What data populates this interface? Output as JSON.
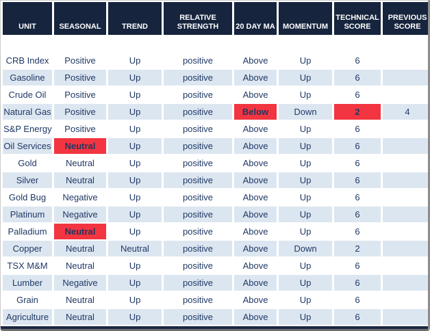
{
  "colors": {
    "header_bg": "#16243d",
    "header_text": "#ffffff",
    "row_alt_bg": "#dce6f1",
    "alert_bg": "#f23540",
    "cell_text": "#1f3864"
  },
  "table": {
    "columns": [
      {
        "key": "unit",
        "label": "UNIT"
      },
      {
        "key": "seasonal",
        "label": "SEASONAL"
      },
      {
        "key": "trend",
        "label": "TREND"
      },
      {
        "key": "relative_strength",
        "label": "RELATIVE STRENGTH"
      },
      {
        "key": "ma20",
        "label": "20 DAY MA"
      },
      {
        "key": "momentum",
        "label": "MOMENTUM"
      },
      {
        "key": "technical_score",
        "label": "TECHNICAL SCORE"
      },
      {
        "key": "previous_score",
        "label": "PREVIOUS SCORE"
      }
    ],
    "rows": [
      {
        "unit": "CRB Index",
        "seasonal": "Positive",
        "trend": "Up",
        "relative_strength": "positive",
        "ma20": "Above",
        "momentum": "Up",
        "technical_score": "6",
        "previous_score": ""
      },
      {
        "unit": "Gasoline",
        "seasonal": "Positive",
        "trend": "Up",
        "relative_strength": "positive",
        "ma20": "Above",
        "momentum": "Up",
        "technical_score": "6",
        "previous_score": ""
      },
      {
        "unit": "Crude Oil",
        "seasonal": "Positive",
        "trend": "Up",
        "relative_strength": "positive",
        "ma20": "Above",
        "momentum": "Up",
        "technical_score": "6",
        "previous_score": ""
      },
      {
        "unit": "Natural Gas",
        "seasonal": "Positive",
        "trend": "Up",
        "relative_strength": "positive",
        "ma20": "Below",
        "momentum": "Down",
        "technical_score": "2",
        "previous_score": "4",
        "highlights": [
          "ma20",
          "technical_score"
        ]
      },
      {
        "unit": "S&P Energy",
        "seasonal": "Positive",
        "trend": "Up",
        "relative_strength": "positive",
        "ma20": "Above",
        "momentum": "Up",
        "technical_score": "6",
        "previous_score": ""
      },
      {
        "unit": "Oil Services",
        "seasonal": "Neutral",
        "trend": "Up",
        "relative_strength": "positive",
        "ma20": "Above",
        "momentum": "Up",
        "technical_score": "6",
        "previous_score": "",
        "highlights": [
          "seasonal"
        ]
      },
      {
        "unit": "Gold",
        "seasonal": "Neutral",
        "trend": "Up",
        "relative_strength": "positive",
        "ma20": "Above",
        "momentum": "Up",
        "technical_score": "6",
        "previous_score": ""
      },
      {
        "unit": "Silver",
        "seasonal": "Neutral",
        "trend": "Up",
        "relative_strength": "positive",
        "ma20": "Above",
        "momentum": "Up",
        "technical_score": "6",
        "previous_score": ""
      },
      {
        "unit": "Gold Bug",
        "seasonal": "Negative",
        "trend": "Up",
        "relative_strength": "positive",
        "ma20": "Above",
        "momentum": "Up",
        "technical_score": "6",
        "previous_score": ""
      },
      {
        "unit": "Platinum",
        "seasonal": "Negative",
        "trend": "Up",
        "relative_strength": "positive",
        "ma20": "Above",
        "momentum": "Up",
        "technical_score": "6",
        "previous_score": ""
      },
      {
        "unit": "Palladium",
        "seasonal": "Neutral",
        "trend": "Up",
        "relative_strength": "positive",
        "ma20": "Above",
        "momentum": "Up",
        "technical_score": "6",
        "previous_score": "",
        "highlights": [
          "seasonal"
        ]
      },
      {
        "unit": "Copper",
        "seasonal": "Neutral",
        "trend": "Neutral",
        "relative_strength": "positive",
        "ma20": "Above",
        "momentum": "Down",
        "technical_score": "2",
        "previous_score": ""
      },
      {
        "unit": "TSX M&M",
        "seasonal": "Neutral",
        "trend": "Up",
        "relative_strength": "positive",
        "ma20": "Above",
        "momentum": "Up",
        "technical_score": "6",
        "previous_score": ""
      },
      {
        "unit": "Lumber",
        "seasonal": "Negative",
        "trend": "Up",
        "relative_strength": "positive",
        "ma20": "Above",
        "momentum": "Up",
        "technical_score": "6",
        "previous_score": ""
      },
      {
        "unit": "Grain",
        "seasonal": "Neutral",
        "trend": "Up",
        "relative_strength": "positive",
        "ma20": "Above",
        "momentum": "Up",
        "technical_score": "6",
        "previous_score": ""
      },
      {
        "unit": "Agriculture",
        "seasonal": "Neutral",
        "trend": "Up",
        "relative_strength": "positive",
        "ma20": "Above",
        "momentum": "Up",
        "technical_score": "6",
        "previous_score": ""
      }
    ]
  }
}
